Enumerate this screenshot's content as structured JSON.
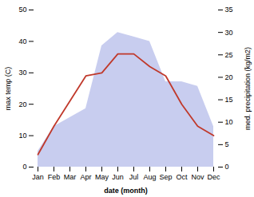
{
  "chart_data": {
    "type": "line",
    "categories": [
      "Jan",
      "Feb",
      "Mar",
      "Apr",
      "May",
      "Jun",
      "Jul",
      "Aug",
      "Sep",
      "Oct",
      "Nov",
      "Dec"
    ],
    "xlabel": "date (month)",
    "ylabel": "max temp (C)",
    "y2label": "med. precipitation (kg/m2)",
    "series": [
      {
        "type": "area",
        "axis": "y2",
        "color": "#b0b8e8",
        "values": [
          3.5,
          9,
          11,
          13,
          27,
          30,
          29,
          28,
          19,
          19,
          18,
          9
        ]
      },
      {
        "type": "line",
        "color": "#c0392b",
        "values": [
          4,
          13,
          21,
          29,
          30,
          36,
          36,
          32,
          29,
          20,
          13,
          10
        ]
      }
    ],
    "ylim": [
      0,
      50
    ],
    "yticks": [
      0,
      10,
      20,
      30,
      40,
      50
    ],
    "y2lim": [
      0,
      35
    ],
    "y2ticks": [
      0,
      5,
      10,
      15,
      20,
      25,
      30,
      35
    ]
  }
}
